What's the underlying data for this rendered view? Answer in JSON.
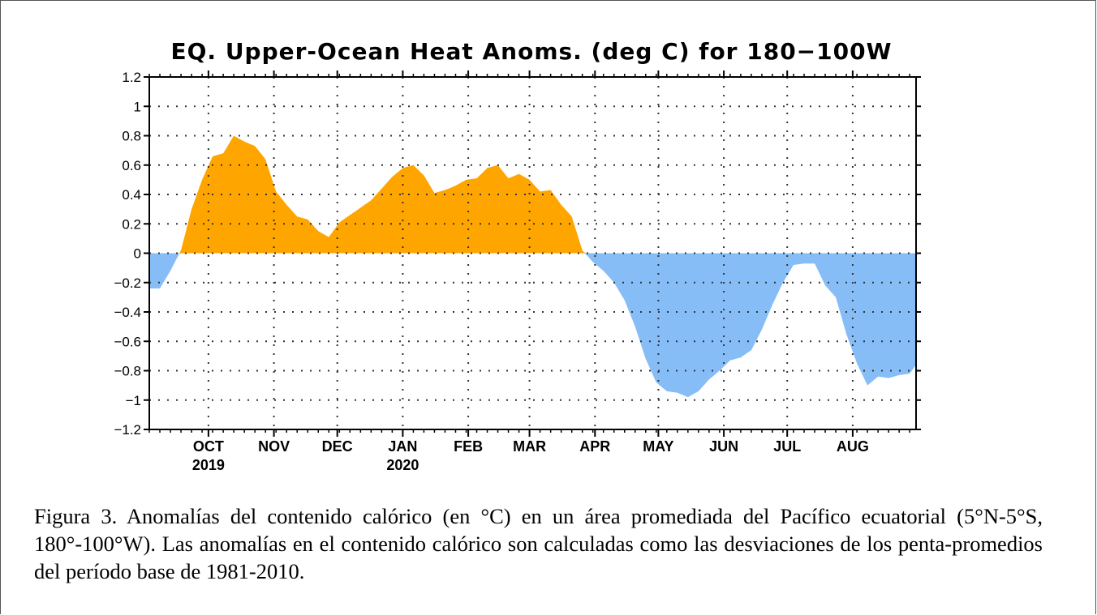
{
  "chart_data": {
    "type": "area",
    "title": "EQ. Upper-Ocean Heat Anoms. (deg C) for 180−100W",
    "xlabel": "",
    "ylabel": "",
    "ylim": [
      -1.2,
      1.2
    ],
    "yticks": [
      1.2,
      1,
      0.8,
      0.6,
      0.4,
      0.2,
      0,
      -0.2,
      -0.4,
      -0.6,
      -0.8,
      -1,
      -1.2
    ],
    "ytick_labels": [
      "1.2",
      "1",
      "0.8",
      "0.6",
      "0.4",
      "0.2",
      "0",
      "−0.2",
      "−0.4",
      "−0.6",
      "−0.8",
      "−1",
      "−1.2"
    ],
    "xlim": [
      "2019-09-03",
      "2020-08-31"
    ],
    "xticks": [
      {
        "date": "2019-10-01",
        "label": "OCT",
        "year": "2019"
      },
      {
        "date": "2019-11-01",
        "label": "NOV"
      },
      {
        "date": "2019-12-01",
        "label": "DEC"
      },
      {
        "date": "2020-01-01",
        "label": "JAN",
        "year": "2020"
      },
      {
        "date": "2020-02-01",
        "label": "FEB"
      },
      {
        "date": "2020-03-01",
        "label": "MAR"
      },
      {
        "date": "2020-04-01",
        "label": "APR"
      },
      {
        "date": "2020-05-01",
        "label": "MAY"
      },
      {
        "date": "2020-06-01",
        "label": "JUN"
      },
      {
        "date": "2020-07-01",
        "label": "JUL"
      },
      {
        "date": "2020-08-01",
        "label": "AUG"
      }
    ],
    "grid": true,
    "positive_color": "#ffa500",
    "negative_color": "#87bdf7",
    "x": [
      "2019-09-03",
      "2019-09-08",
      "2019-09-13",
      "2019-09-18",
      "2019-09-23",
      "2019-09-28",
      "2019-10-03",
      "2019-10-08",
      "2019-10-13",
      "2019-10-18",
      "2019-10-23",
      "2019-10-28",
      "2019-11-02",
      "2019-11-07",
      "2019-11-12",
      "2019-11-17",
      "2019-11-22",
      "2019-11-27",
      "2019-12-02",
      "2019-12-07",
      "2019-12-12",
      "2019-12-17",
      "2019-12-22",
      "2019-12-27",
      "2020-01-01",
      "2020-01-06",
      "2020-01-11",
      "2020-01-16",
      "2020-01-21",
      "2020-01-26",
      "2020-01-31",
      "2020-02-05",
      "2020-02-10",
      "2020-02-15",
      "2020-02-20",
      "2020-02-25",
      "2020-03-01",
      "2020-03-06",
      "2020-03-11",
      "2020-03-16",
      "2020-03-21",
      "2020-03-26",
      "2020-03-31",
      "2020-04-05",
      "2020-04-10",
      "2020-04-15",
      "2020-04-20",
      "2020-04-25",
      "2020-04-30",
      "2020-05-05",
      "2020-05-10",
      "2020-05-15",
      "2020-05-20",
      "2020-05-25",
      "2020-05-30",
      "2020-06-04",
      "2020-06-09",
      "2020-06-14",
      "2020-06-19",
      "2020-06-24",
      "2020-06-29",
      "2020-07-04",
      "2020-07-09",
      "2020-07-14",
      "2020-07-19",
      "2020-07-24",
      "2020-07-29",
      "2020-08-03",
      "2020-08-08",
      "2020-08-13",
      "2020-08-18",
      "2020-08-23",
      "2020-08-28",
      "2020-08-31"
    ],
    "values": [
      -0.24,
      -0.24,
      -0.12,
      0.02,
      0.3,
      0.5,
      0.66,
      0.68,
      0.8,
      0.76,
      0.73,
      0.64,
      0.42,
      0.33,
      0.25,
      0.23,
      0.15,
      0.11,
      0.21,
      0.26,
      0.31,
      0.36,
      0.44,
      0.52,
      0.58,
      0.6,
      0.53,
      0.41,
      0.43,
      0.46,
      0.5,
      0.51,
      0.58,
      0.6,
      0.51,
      0.54,
      0.5,
      0.42,
      0.43,
      0.33,
      0.25,
      0.02,
      -0.06,
      -0.12,
      -0.2,
      -0.32,
      -0.5,
      -0.72,
      -0.88,
      -0.94,
      -0.95,
      -0.98,
      -0.94,
      -0.86,
      -0.8,
      -0.73,
      -0.71,
      -0.66,
      -0.52,
      -0.35,
      -0.2,
      -0.08,
      -0.07,
      -0.07,
      -0.22,
      -0.3,
      -0.55,
      -0.75,
      -0.9,
      -0.84,
      -0.85,
      -0.83,
      -0.82,
      -0.76
    ]
  },
  "caption": "Figura 3. Anomalías del contenido calórico (en °C) en un área promediada del Pacífico ecuatorial (5°N-5°S, 180°-100°W). Las anomalías en el contenido calórico son calculadas como las desviaciones de los penta-promedios del período base de 1981-2010."
}
